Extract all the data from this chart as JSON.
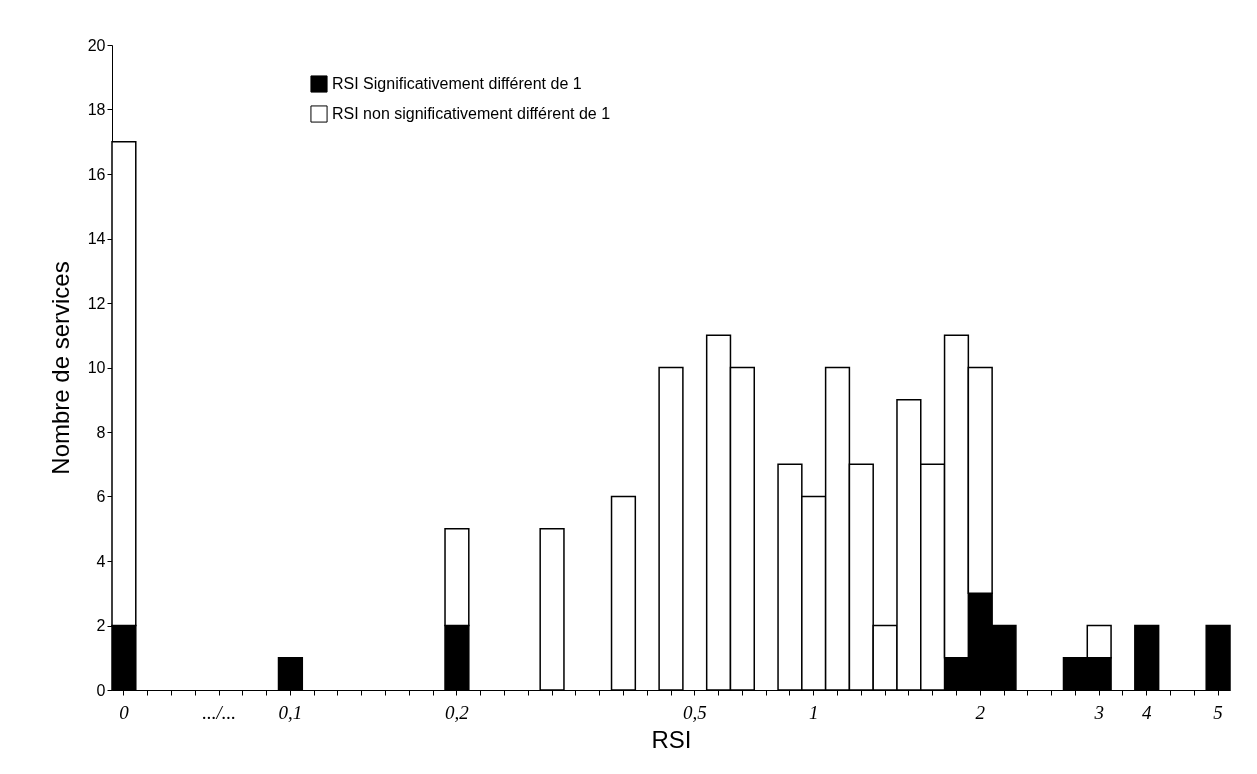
{
  "chart_data": {
    "type": "bar",
    "stacked": true,
    "xlabel": "RSI",
    "ylabel": "Nombre de services",
    "categories": [
      "0",
      null,
      null,
      null,
      ".../...",
      null,
      null,
      "0,1",
      null,
      null,
      null,
      null,
      null,
      null,
      "0,2",
      null,
      null,
      null,
      null,
      null,
      null,
      null,
      null,
      null,
      "0,5",
      null,
      null,
      null,
      null,
      "1",
      null,
      null,
      null,
      null,
      null,
      null,
      "2",
      null,
      null,
      null,
      null,
      "3",
      null,
      "4",
      null,
      null,
      "5"
    ],
    "series": [
      {
        "name": "RSI Significativement différent de 1",
        "color": "#000000",
        "values": [
          2,
          null,
          null,
          null,
          null,
          null,
          null,
          1,
          null,
          null,
          null,
          null,
          null,
          null,
          2,
          null,
          null,
          null,
          null,
          null,
          null,
          null,
          null,
          null,
          null,
          null,
          null,
          null,
          null,
          null,
          null,
          null,
          null,
          null,
          null,
          1,
          3,
          2,
          null,
          null,
          1,
          1,
          null,
          2,
          null,
          null,
          2
        ]
      },
      {
        "name": "RSI non significativement différent de 1",
        "color": "#ffffff",
        "values": [
          15,
          null,
          null,
          null,
          null,
          null,
          null,
          null,
          null,
          null,
          null,
          null,
          null,
          null,
          3,
          null,
          null,
          null,
          5,
          null,
          null,
          6,
          null,
          10,
          null,
          11,
          10,
          null,
          7,
          6,
          10,
          7,
          2,
          9,
          7,
          10,
          7,
          null,
          null,
          null,
          null,
          1,
          null,
          null,
          null,
          null,
          null
        ]
      }
    ],
    "ylim": [
      0,
      20
    ],
    "yticks": [
      0,
      2,
      4,
      6,
      8,
      10,
      12,
      14,
      16,
      18,
      20
    ],
    "legend": "top"
  }
}
